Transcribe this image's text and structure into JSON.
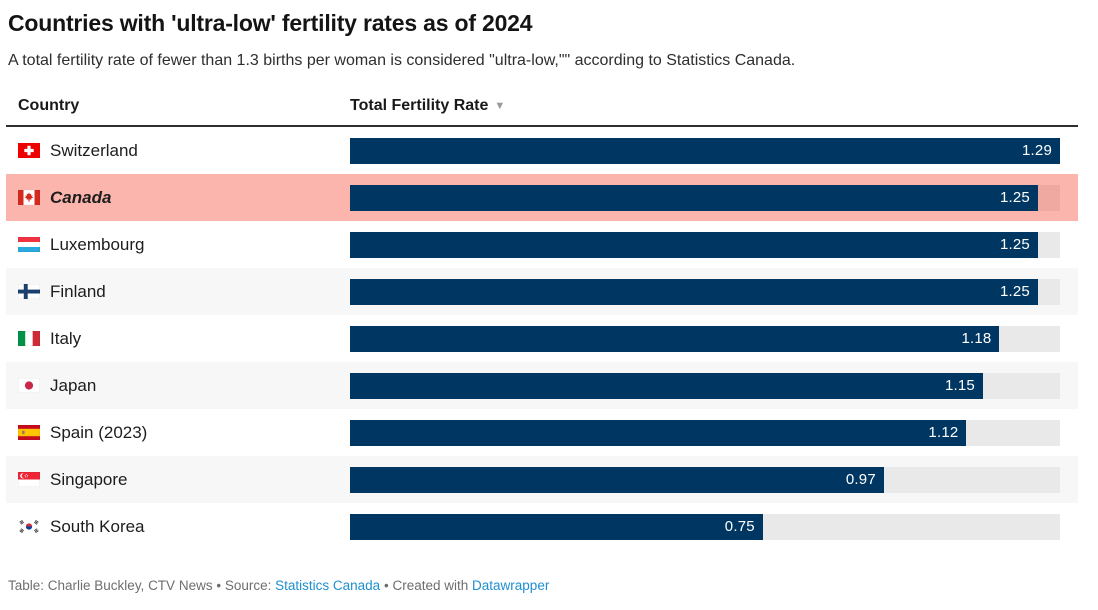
{
  "header": {
    "title": "Countries with 'ultra-low' fertility rates as of 2024",
    "subtitle": "A total fertility rate of fewer than 1.3 births per woman is considered \"ultra-low,\"\" according to Statistics Canada."
  },
  "table": {
    "columns": [
      {
        "label": "Country",
        "sortable": true
      },
      {
        "label": "Total Fertility Rate",
        "sortable": true,
        "sort_direction": "desc",
        "sort_indicator": "▼",
        "sort_icon": "sort-desc-icon"
      }
    ],
    "rows": [
      {
        "country": "Switzerland",
        "flag": "switzerland",
        "flag_icon": "flag-switzerland-icon",
        "value": 1.29,
        "value_label": "1.29",
        "highlight": false
      },
      {
        "country": "Canada",
        "flag": "canada",
        "flag_icon": "flag-canada-icon",
        "value": 1.25,
        "value_label": "1.25",
        "highlight": true
      },
      {
        "country": "Luxembourg",
        "flag": "luxembourg",
        "flag_icon": "flag-luxembourg-icon",
        "value": 1.25,
        "value_label": "1.25",
        "highlight": false
      },
      {
        "country": "Finland",
        "flag": "finland",
        "flag_icon": "flag-finland-icon",
        "value": 1.25,
        "value_label": "1.25",
        "highlight": false
      },
      {
        "country": "Italy",
        "flag": "italy",
        "flag_icon": "flag-italy-icon",
        "value": 1.18,
        "value_label": "1.18",
        "highlight": false
      },
      {
        "country": "Japan",
        "flag": "japan",
        "flag_icon": "flag-japan-icon",
        "value": 1.15,
        "value_label": "1.15",
        "highlight": false
      },
      {
        "country": "Spain (2023)",
        "flag": "spain",
        "flag_icon": "flag-spain-icon",
        "value": 1.12,
        "value_label": "1.12",
        "highlight": false
      },
      {
        "country": "Singapore",
        "flag": "singapore",
        "flag_icon": "flag-singapore-icon",
        "value": 0.97,
        "value_label": "0.97",
        "highlight": false
      },
      {
        "country": "South Korea",
        "flag": "south-korea",
        "flag_icon": "flag-south-korea-icon",
        "value": 0.75,
        "value_label": "0.75",
        "highlight": false
      }
    ]
  },
  "footer": {
    "credit": "Table: Charlie Buckley, CTV News",
    "separator": "•",
    "source_label": "Source:",
    "source_link": "Statistics Canada",
    "created_label": "Created with",
    "created_link": "Datawrapper"
  },
  "colors": {
    "bar": "#003762",
    "bar_track": "#e9e9e9",
    "row_alt_bg": "#f7f7f7",
    "highlight_bg": "#fcb5ac",
    "highlight_track": "#f0a9a1",
    "value_text": "#ffffff",
    "link": "#1e8fd0",
    "header_rule": "#2e2e2e",
    "footer_text": "#6e6e6e"
  },
  "chart_data": {
    "type": "bar",
    "orientation": "horizontal",
    "title": "Countries with 'ultra-low' fertility rates as of 2024",
    "subtitle": "A total fertility rate of fewer than 1.3 births per woman is considered \"ultra-low,\"\" according to Statistics Canada.",
    "categories": [
      "Switzerland",
      "Canada",
      "Luxembourg",
      "Finland",
      "Italy",
      "Japan",
      "Spain (2023)",
      "Singapore",
      "South Korea"
    ],
    "values": [
      1.29,
      1.25,
      1.25,
      1.25,
      1.18,
      1.15,
      1.12,
      0.97,
      0.75
    ],
    "xlabel": "Total Fertility Rate",
    "ylabel": "Country",
    "xlim": [
      0,
      1.29
    ],
    "sort": "descending",
    "data_labels": true,
    "highlighted_category": "Canada",
    "legend": "none",
    "grid": false
  }
}
